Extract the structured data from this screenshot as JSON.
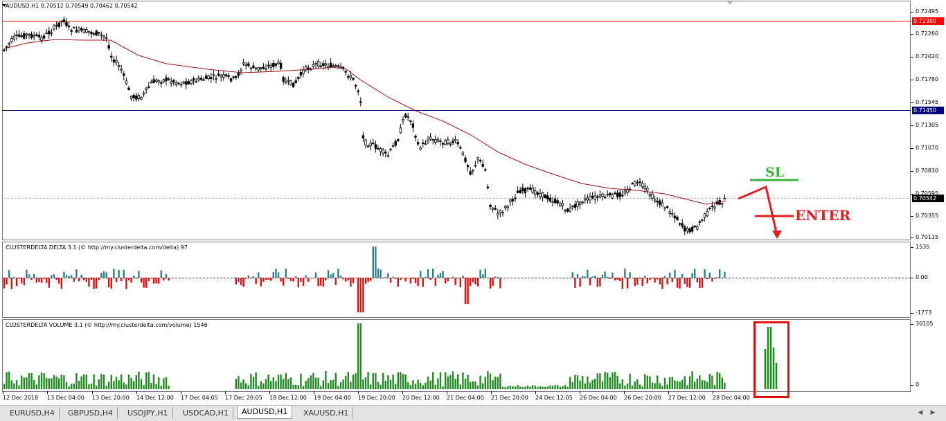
{
  "main_chart": {
    "title": "AUDUSD,H1  0.70512 0.70549 0.70462 0.70542",
    "price_ticks": [
      "0.72495",
      "0.72260",
      "0.72020",
      "0.71780",
      "0.71545",
      "0.71305",
      "0.71070",
      "0.70830",
      "0.70595",
      "0.70355",
      "0.70115"
    ],
    "levels": {
      "red": {
        "price": 0.7238,
        "label": "0.72380",
        "color": "#ff0000"
      },
      "blue": {
        "price": 0.7145,
        "label": "0.71450",
        "color": "#00007f"
      },
      "current": {
        "price": 0.70542,
        "label": "0.70542",
        "color": "#000000"
      }
    },
    "annotations": {
      "sl": "SL",
      "enter": "ENTER",
      "sl_color": "#3cb43c",
      "enter_color": "#e41e1e"
    }
  },
  "delta_indicator": {
    "title": "CLUSTERDELTA DELTA 3.1 (© http://my.clusterdelta.com/delta) 97",
    "ticks": [
      "1535",
      "0.00",
      "-1773"
    ],
    "up_color": "#2a7f8f",
    "down_color": "#e01010"
  },
  "volume_indicator": {
    "title": "CLUSTERDELTA VOLUME 3.1 (© http://my.clusterdelta.com/volume) 1546",
    "ticks": [
      "30105",
      "0"
    ],
    "bar_color": "#1e8c1e",
    "highlight_color": "#e01010"
  },
  "time_axis": [
    "12 Dec 2018",
    "13 Dec 04:00",
    "13 Dec 20:00",
    "14 Dec 12:00",
    "17 Dec 04:05",
    "17 Dec 20:05",
    "18 Dec 12:00",
    "19 Dec 04:00",
    "19 Dec 20:00",
    "20 Dec 12:00",
    "21 Dec 04:00",
    "21 Dec 20:00",
    "24 Dec 12:05",
    "26 Dec 04:00",
    "26 Dec 20:00",
    "27 Dec 12:00",
    "28 Dec 04:00"
  ],
  "tabs": [
    {
      "label": "EURUSD,H4",
      "active": false
    },
    {
      "label": "GBPUSD,H4",
      "active": false
    },
    {
      "label": "USDJPY,H1",
      "active": false
    },
    {
      "label": "USDCAD,H1",
      "active": false
    },
    {
      "label": "AUDUSD,H1",
      "active": true
    },
    {
      "label": "XAUUSD,H1",
      "active": false
    }
  ],
  "tab_scroll": {
    "left": "◀",
    "right": "▶"
  }
}
